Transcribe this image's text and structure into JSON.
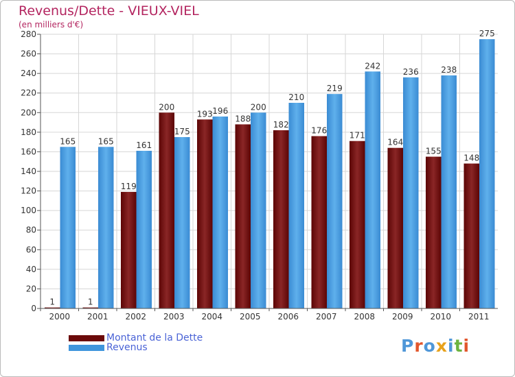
{
  "header": {
    "title": "Revenus/Dette - VIEUX-VIEL",
    "subtitle": "(en milliers d'€)"
  },
  "legend": [
    {
      "label": "Montant de la Dette",
      "color": "#6b0a0a"
    },
    {
      "label": "Revenus",
      "color": "#3f95dc"
    }
  ],
  "logo": {
    "text": "Proxiti",
    "letters": [
      "P",
      "r",
      "o",
      "x",
      "i",
      "t",
      "i"
    ],
    "colors": [
      "#4f97d8",
      "#e2562c",
      "#4f97d8",
      "#e8a21c",
      "#4f97d8",
      "#6cb33f",
      "#e2562c"
    ]
  },
  "chart_data": {
    "type": "bar",
    "title": "Revenus/Dette - VIEUX-VIEL",
    "ylabel": "(en milliers d'€)",
    "xlabel": "",
    "categories": [
      "2000",
      "2001",
      "2002",
      "2003",
      "2004",
      "2005",
      "2006",
      "2007",
      "2008",
      "2009",
      "2010",
      "2011"
    ],
    "series": [
      {
        "name": "Montant de la Dette",
        "color": "#6b0a0a",
        "values": [
          1,
          1,
          119,
          200,
          193,
          188,
          182,
          176,
          171,
          164,
          155,
          148
        ]
      },
      {
        "name": "Revenus",
        "color": "#3f95dc",
        "values": [
          165,
          165,
          161,
          175,
          196,
          200,
          210,
          219,
          242,
          236,
          238,
          275
        ]
      }
    ],
    "ylim": [
      0,
      280
    ],
    "yticks": [
      0,
      20,
      40,
      60,
      80,
      100,
      120,
      140,
      160,
      180,
      200,
      220,
      240,
      260,
      280
    ],
    "grid": true
  }
}
